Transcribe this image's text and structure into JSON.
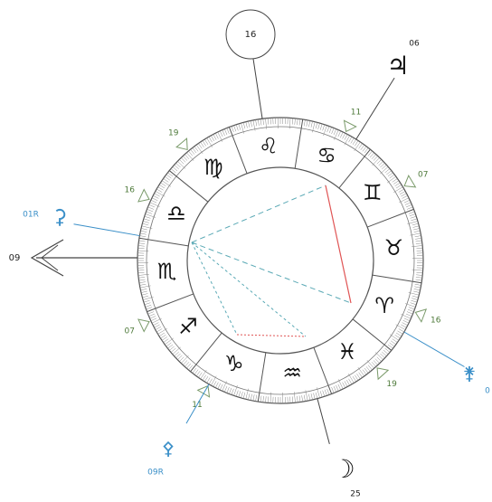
{
  "signs": [
    "♈",
    "♉",
    "♊",
    "♋",
    "♌",
    "♍",
    "♎",
    "♏",
    "♐",
    "♑",
    "♒",
    "♓"
  ],
  "midheaven": {
    "degree": "16"
  },
  "ascendant": {
    "degree": "09"
  },
  "planets": [
    {
      "glyph": "♃",
      "degree": "06"
    },
    {
      "glyph": "☽",
      "degree": "25"
    },
    {
      "glyph": "⚳",
      "degree": "01R"
    },
    {
      "glyph": "⚴",
      "degree": "09R"
    },
    {
      "glyph": "⚵",
      "degree": "0"
    }
  ],
  "house_cusps": [
    "19",
    "11",
    "07",
    "16",
    "19",
    "11",
    "07",
    "16"
  ]
}
